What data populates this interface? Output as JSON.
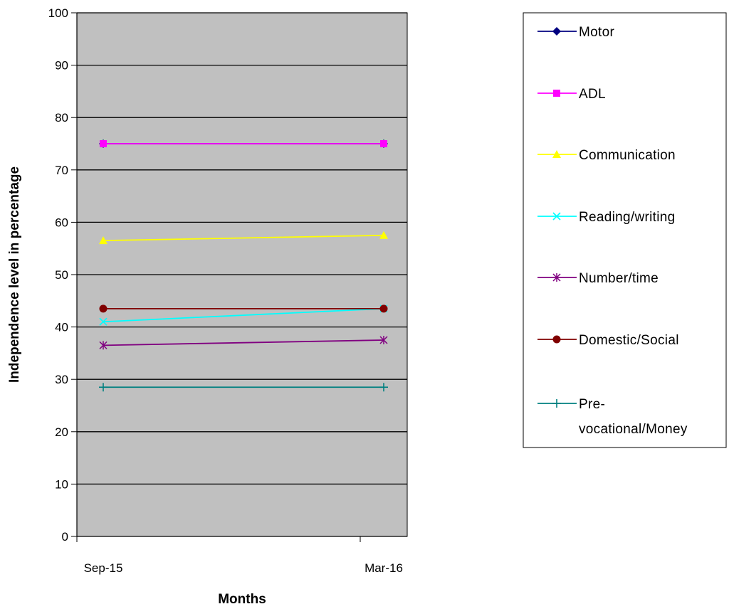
{
  "chart_data": {
    "type": "line",
    "title": "",
    "xlabel": "Months",
    "ylabel": "Independence level in percentage",
    "categories": [
      "Sep-15",
      "Mar-16"
    ],
    "ylim": [
      0,
      100
    ],
    "yticks": [
      0,
      10,
      20,
      30,
      40,
      50,
      60,
      70,
      80,
      90,
      100
    ],
    "grid": true,
    "plot_background": "#c0c0c0",
    "legend_position": "right",
    "series": [
      {
        "name": "Motor",
        "values": [
          75,
          75
        ],
        "color": "#000080",
        "marker": "diamond"
      },
      {
        "name": "ADL",
        "values": [
          75,
          75
        ],
        "color": "#ff00ff",
        "marker": "square"
      },
      {
        "name": "Communication",
        "values": [
          56.5,
          57.5
        ],
        "color": "#ffff00",
        "marker": "triangle"
      },
      {
        "name": "Reading/writing",
        "values": [
          41,
          43.5
        ],
        "color": "#00ffff",
        "marker": "x"
      },
      {
        "name": "Number/time",
        "values": [
          36.5,
          37.5
        ],
        "color": "#800080",
        "marker": "star"
      },
      {
        "name": "Domestic/Social",
        "values": [
          43.5,
          43.5
        ],
        "color": "#800000",
        "marker": "circle"
      },
      {
        "name": "Pre-vocational/Money",
        "label_lines": [
          "Pre-",
          "vocational/Money"
        ],
        "values": [
          28.5,
          28.5
        ],
        "color": "#008080",
        "marker": "plus"
      }
    ]
  }
}
